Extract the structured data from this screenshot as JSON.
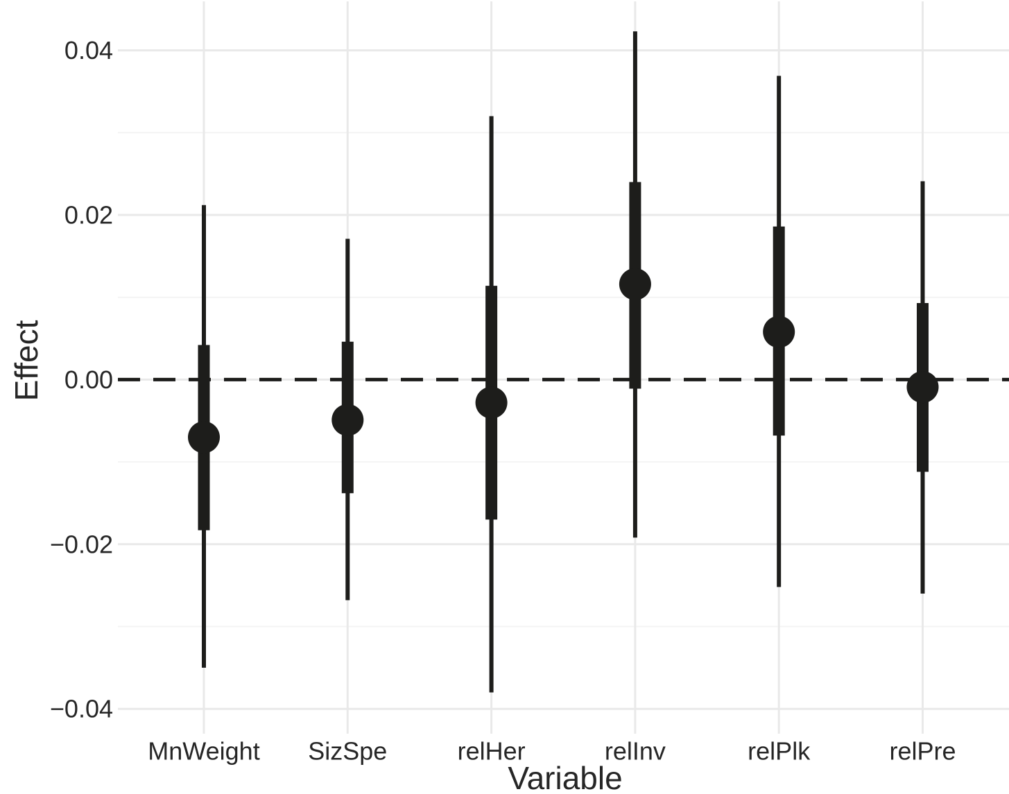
{
  "figure": {
    "background": "#ffffff",
    "text_color": "#262626",
    "series_color": "#1d1d1b",
    "gridline_major_color": "#e9e9e9",
    "gridline_minor_color": "#f4f4f4"
  },
  "chart_data": {
    "type": "scatter",
    "subtype": "point-interval coefficient (forest) plot: dot = estimate, thick bar = inner interval, thin line = outer interval",
    "title": "",
    "xlabel": "Variable",
    "ylabel": "Effect",
    "categories": [
      "MnWeight",
      "SizSpe",
      "relHer",
      "relInv",
      "relPlk",
      "relPre"
    ],
    "ylim": [
      -0.0445,
      0.0455
    ],
    "yticks": [
      0.04,
      0.02,
      0.0,
      -0.02,
      -0.04
    ],
    "ytick_labels": [
      "0.04",
      "0.02",
      "0.00",
      "−0.02",
      "−0.04"
    ],
    "yticks_minor": [
      0.03,
      0.01,
      -0.01,
      -0.03
    ],
    "reference_line": {
      "y": 0.0,
      "style": "dashed",
      "color": "#1d1d1b"
    },
    "grid": "light horizontal major+minor gridlines; light vertical gridline at each category; no legend",
    "legend": "none",
    "series": [
      {
        "variable": "MnWeight",
        "estimate": -0.007,
        "thick_low": -0.0183,
        "thick_high": 0.0042,
        "thin_low": -0.035,
        "thin_high": 0.0212
      },
      {
        "variable": "SizSpe",
        "estimate": -0.0049,
        "thick_low": -0.0138,
        "thick_high": 0.0046,
        "thin_low": -0.0268,
        "thin_high": 0.0171
      },
      {
        "variable": "relHer",
        "estimate": -0.0028,
        "thick_low": -0.017,
        "thick_high": 0.0114,
        "thin_low": -0.038,
        "thin_high": 0.032
      },
      {
        "variable": "relInv",
        "estimate": 0.0116,
        "thick_low": -0.0011,
        "thick_high": 0.024,
        "thin_low": -0.0192,
        "thin_high": 0.0423
      },
      {
        "variable": "relPlk",
        "estimate": 0.0058,
        "thick_low": -0.0068,
        "thick_high": 0.0186,
        "thin_low": -0.0252,
        "thin_high": 0.0369
      },
      {
        "variable": "relPre",
        "estimate": -0.0009,
        "thick_low": -0.0112,
        "thick_high": 0.0093,
        "thin_low": -0.026,
        "thin_high": 0.0241
      }
    ]
  }
}
